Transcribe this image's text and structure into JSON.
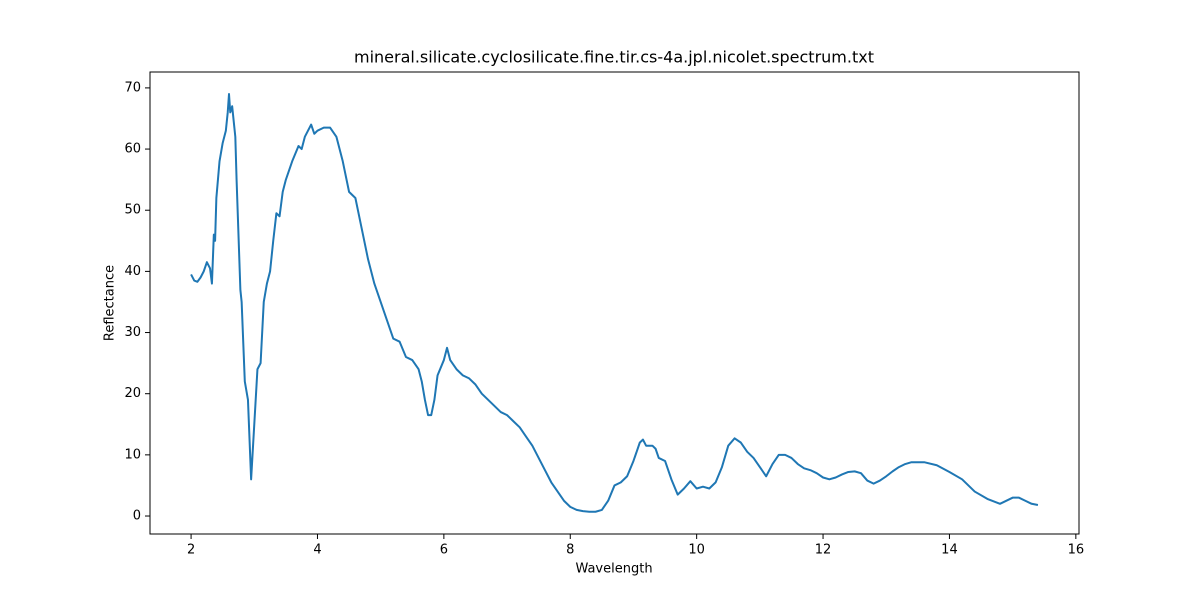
{
  "chart_data": {
    "type": "line",
    "title": "mineral.silicate.cyclosilicate.fine.tir.cs-4a.jpl.nicolet.spectrum.txt",
    "xlabel": "Wavelength",
    "ylabel": "Reflectance",
    "color": "#1f77b4",
    "xlim": [
      1.35,
      16.05
    ],
    "ylim": [
      -2.94,
      72.6
    ],
    "xticks": [
      2,
      4,
      6,
      8,
      10,
      12,
      14,
      16
    ],
    "yticks": [
      0,
      10,
      20,
      30,
      40,
      50,
      60,
      70
    ],
    "x": [
      2.0,
      2.05,
      2.1,
      2.15,
      2.2,
      2.25,
      2.3,
      2.33,
      2.36,
      2.38,
      2.4,
      2.45,
      2.5,
      2.55,
      2.58,
      2.6,
      2.62,
      2.65,
      2.7,
      2.72,
      2.75,
      2.78,
      2.8,
      2.85,
      2.9,
      2.95,
      3.0,
      3.05,
      3.1,
      3.15,
      3.2,
      3.25,
      3.3,
      3.35,
      3.4,
      3.45,
      3.5,
      3.6,
      3.7,
      3.75,
      3.8,
      3.85,
      3.9,
      3.95,
      4.0,
      4.1,
      4.2,
      4.3,
      4.4,
      4.5,
      4.6,
      4.7,
      4.8,
      4.9,
      5.0,
      5.1,
      5.2,
      5.3,
      5.4,
      5.5,
      5.6,
      5.65,
      5.7,
      5.75,
      5.8,
      5.85,
      5.9,
      6.0,
      6.05,
      6.1,
      6.2,
      6.3,
      6.4,
      6.5,
      6.6,
      6.7,
      6.8,
      6.9,
      7.0,
      7.1,
      7.2,
      7.3,
      7.4,
      7.5,
      7.6,
      7.7,
      7.8,
      7.9,
      8.0,
      8.1,
      8.2,
      8.3,
      8.4,
      8.5,
      8.6,
      8.7,
      8.8,
      8.9,
      9.0,
      9.1,
      9.15,
      9.2,
      9.3,
      9.35,
      9.4,
      9.5,
      9.6,
      9.7,
      9.8,
      9.9,
      10.0,
      10.1,
      10.2,
      10.3,
      10.4,
      10.5,
      10.6,
      10.7,
      10.8,
      10.9,
      11.0,
      11.1,
      11.2,
      11.3,
      11.4,
      11.5,
      11.6,
      11.7,
      11.8,
      11.9,
      12.0,
      12.1,
      12.2,
      12.3,
      12.4,
      12.5,
      12.6,
      12.7,
      12.8,
      12.9,
      13.0,
      13.1,
      13.2,
      13.3,
      13.4,
      13.6,
      13.8,
      14.0,
      14.2,
      14.4,
      14.6,
      14.8,
      15.0,
      15.1,
      15.2,
      15.3,
      15.4
    ],
    "values": [
      39.5,
      38.5,
      38.3,
      39,
      40,
      41.5,
      40.5,
      38,
      46,
      45,
      52,
      58,
      61,
      63,
      66,
      69,
      66,
      67,
      62,
      55,
      46,
      37,
      35,
      22,
      19,
      6,
      15,
      24,
      25,
      35,
      38,
      40,
      45,
      49.5,
      49,
      53,
      55,
      58,
      60.5,
      60,
      62,
      63,
      64,
      62.5,
      63,
      63.5,
      63.5,
      62,
      58,
      53,
      52,
      47,
      42,
      38,
      35,
      32,
      29,
      28.5,
      26,
      25.5,
      24,
      22,
      19,
      16.5,
      16.5,
      19,
      23,
      25.5,
      27.5,
      25.5,
      24,
      23,
      22.5,
      21.5,
      20,
      19,
      18,
      17,
      16.5,
      15.5,
      14.5,
      13,
      11.5,
      9.5,
      7.5,
      5.5,
      4,
      2.5,
      1.5,
      1,
      0.8,
      0.7,
      0.7,
      1,
      2.5,
      5,
      5.5,
      6.5,
      9,
      12,
      12.5,
      11.5,
      11.5,
      11,
      9.5,
      9,
      6,
      3.5,
      4.5,
      5.7,
      4.5,
      4.8,
      4.5,
      5.5,
      8,
      11.5,
      12.7,
      12,
      10.5,
      9.5,
      8,
      6.5,
      8.5,
      10,
      10,
      9.5,
      8.5,
      7.8,
      7.5,
      7,
      6.3,
      6,
      6.3,
      6.8,
      7.2,
      7.3,
      7,
      5.8,
      5.3,
      5.8,
      6.5,
      7.3,
      8,
      8.5,
      8.8,
      8.8,
      8.3,
      7.2,
      6,
      4,
      2.8,
      2,
      3,
      3,
      2.5,
      2,
      1.8
    ]
  }
}
